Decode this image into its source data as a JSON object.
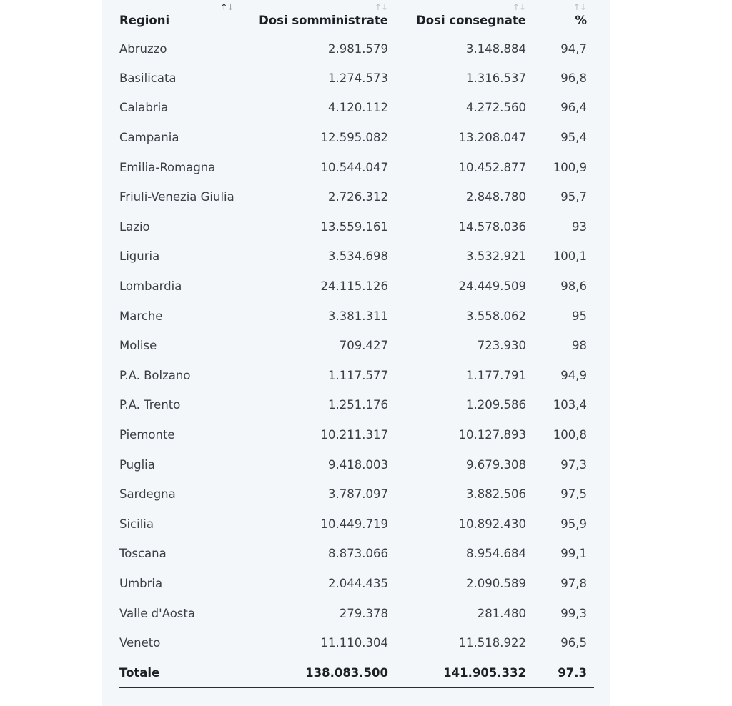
{
  "table": {
    "headers": {
      "region": "Regioni",
      "administered": "Dosi somministrate",
      "delivered": "Dosi consegnate",
      "percent": "%"
    },
    "sort_icon": {
      "up": "↑",
      "down": "↓"
    },
    "sorted_column": "region",
    "rows": [
      {
        "region": "Abruzzo",
        "administered": "2.981.579",
        "delivered": "3.148.884",
        "percent": "94,7"
      },
      {
        "region": "Basilicata",
        "administered": "1.274.573",
        "delivered": "1.316.537",
        "percent": "96,8"
      },
      {
        "region": "Calabria",
        "administered": "4.120.112",
        "delivered": "4.272.560",
        "percent": "96,4"
      },
      {
        "region": "Campania",
        "administered": "12.595.082",
        "delivered": "13.208.047",
        "percent": "95,4"
      },
      {
        "region": "Emilia-Romagna",
        "administered": "10.544.047",
        "delivered": "10.452.877",
        "percent": "100,9"
      },
      {
        "region": "Friuli-Venezia Giulia",
        "administered": "2.726.312",
        "delivered": "2.848.780",
        "percent": "95,7"
      },
      {
        "region": "Lazio",
        "administered": "13.559.161",
        "delivered": "14.578.036",
        "percent": "93"
      },
      {
        "region": "Liguria",
        "administered": "3.534.698",
        "delivered": "3.532.921",
        "percent": "100,1"
      },
      {
        "region": "Lombardia",
        "administered": "24.115.126",
        "delivered": "24.449.509",
        "percent": "98,6"
      },
      {
        "region": "Marche",
        "administered": "3.381.311",
        "delivered": "3.558.062",
        "percent": "95"
      },
      {
        "region": "Molise",
        "administered": "709.427",
        "delivered": "723.930",
        "percent": "98"
      },
      {
        "region": "P.A. Bolzano",
        "administered": "1.117.577",
        "delivered": "1.177.791",
        "percent": "94,9"
      },
      {
        "region": "P.A. Trento",
        "administered": "1.251.176",
        "delivered": "1.209.586",
        "percent": "103,4"
      },
      {
        "region": "Piemonte",
        "administered": "10.211.317",
        "delivered": "10.127.893",
        "percent": "100,8"
      },
      {
        "region": "Puglia",
        "administered": "9.418.003",
        "delivered": "9.679.308",
        "percent": "97,3"
      },
      {
        "region": "Sardegna",
        "administered": "3.787.097",
        "delivered": "3.882.506",
        "percent": "97,5"
      },
      {
        "region": "Sicilia",
        "administered": "10.449.719",
        "delivered": "10.892.430",
        "percent": "95,9"
      },
      {
        "region": "Toscana",
        "administered": "8.873.066",
        "delivered": "8.954.684",
        "percent": "99,1"
      },
      {
        "region": "Umbria",
        "administered": "2.044.435",
        "delivered": "2.090.589",
        "percent": "97,8"
      },
      {
        "region": "Valle d'Aosta",
        "administered": "279.378",
        "delivered": "281.480",
        "percent": "99,3"
      },
      {
        "region": "Veneto",
        "administered": "11.110.304",
        "delivered": "11.518.922",
        "percent": "96,5"
      }
    ],
    "total": {
      "region": "Totale",
      "administered": "138.083.500",
      "delivered": "141.905.332",
      "percent": "97.3"
    }
  },
  "colors": {
    "panel_background": "#f4f7fa",
    "text": "#1c2024",
    "rule": "#2a2e33",
    "sort_icon_inactive": "#b9c0c7"
  }
}
